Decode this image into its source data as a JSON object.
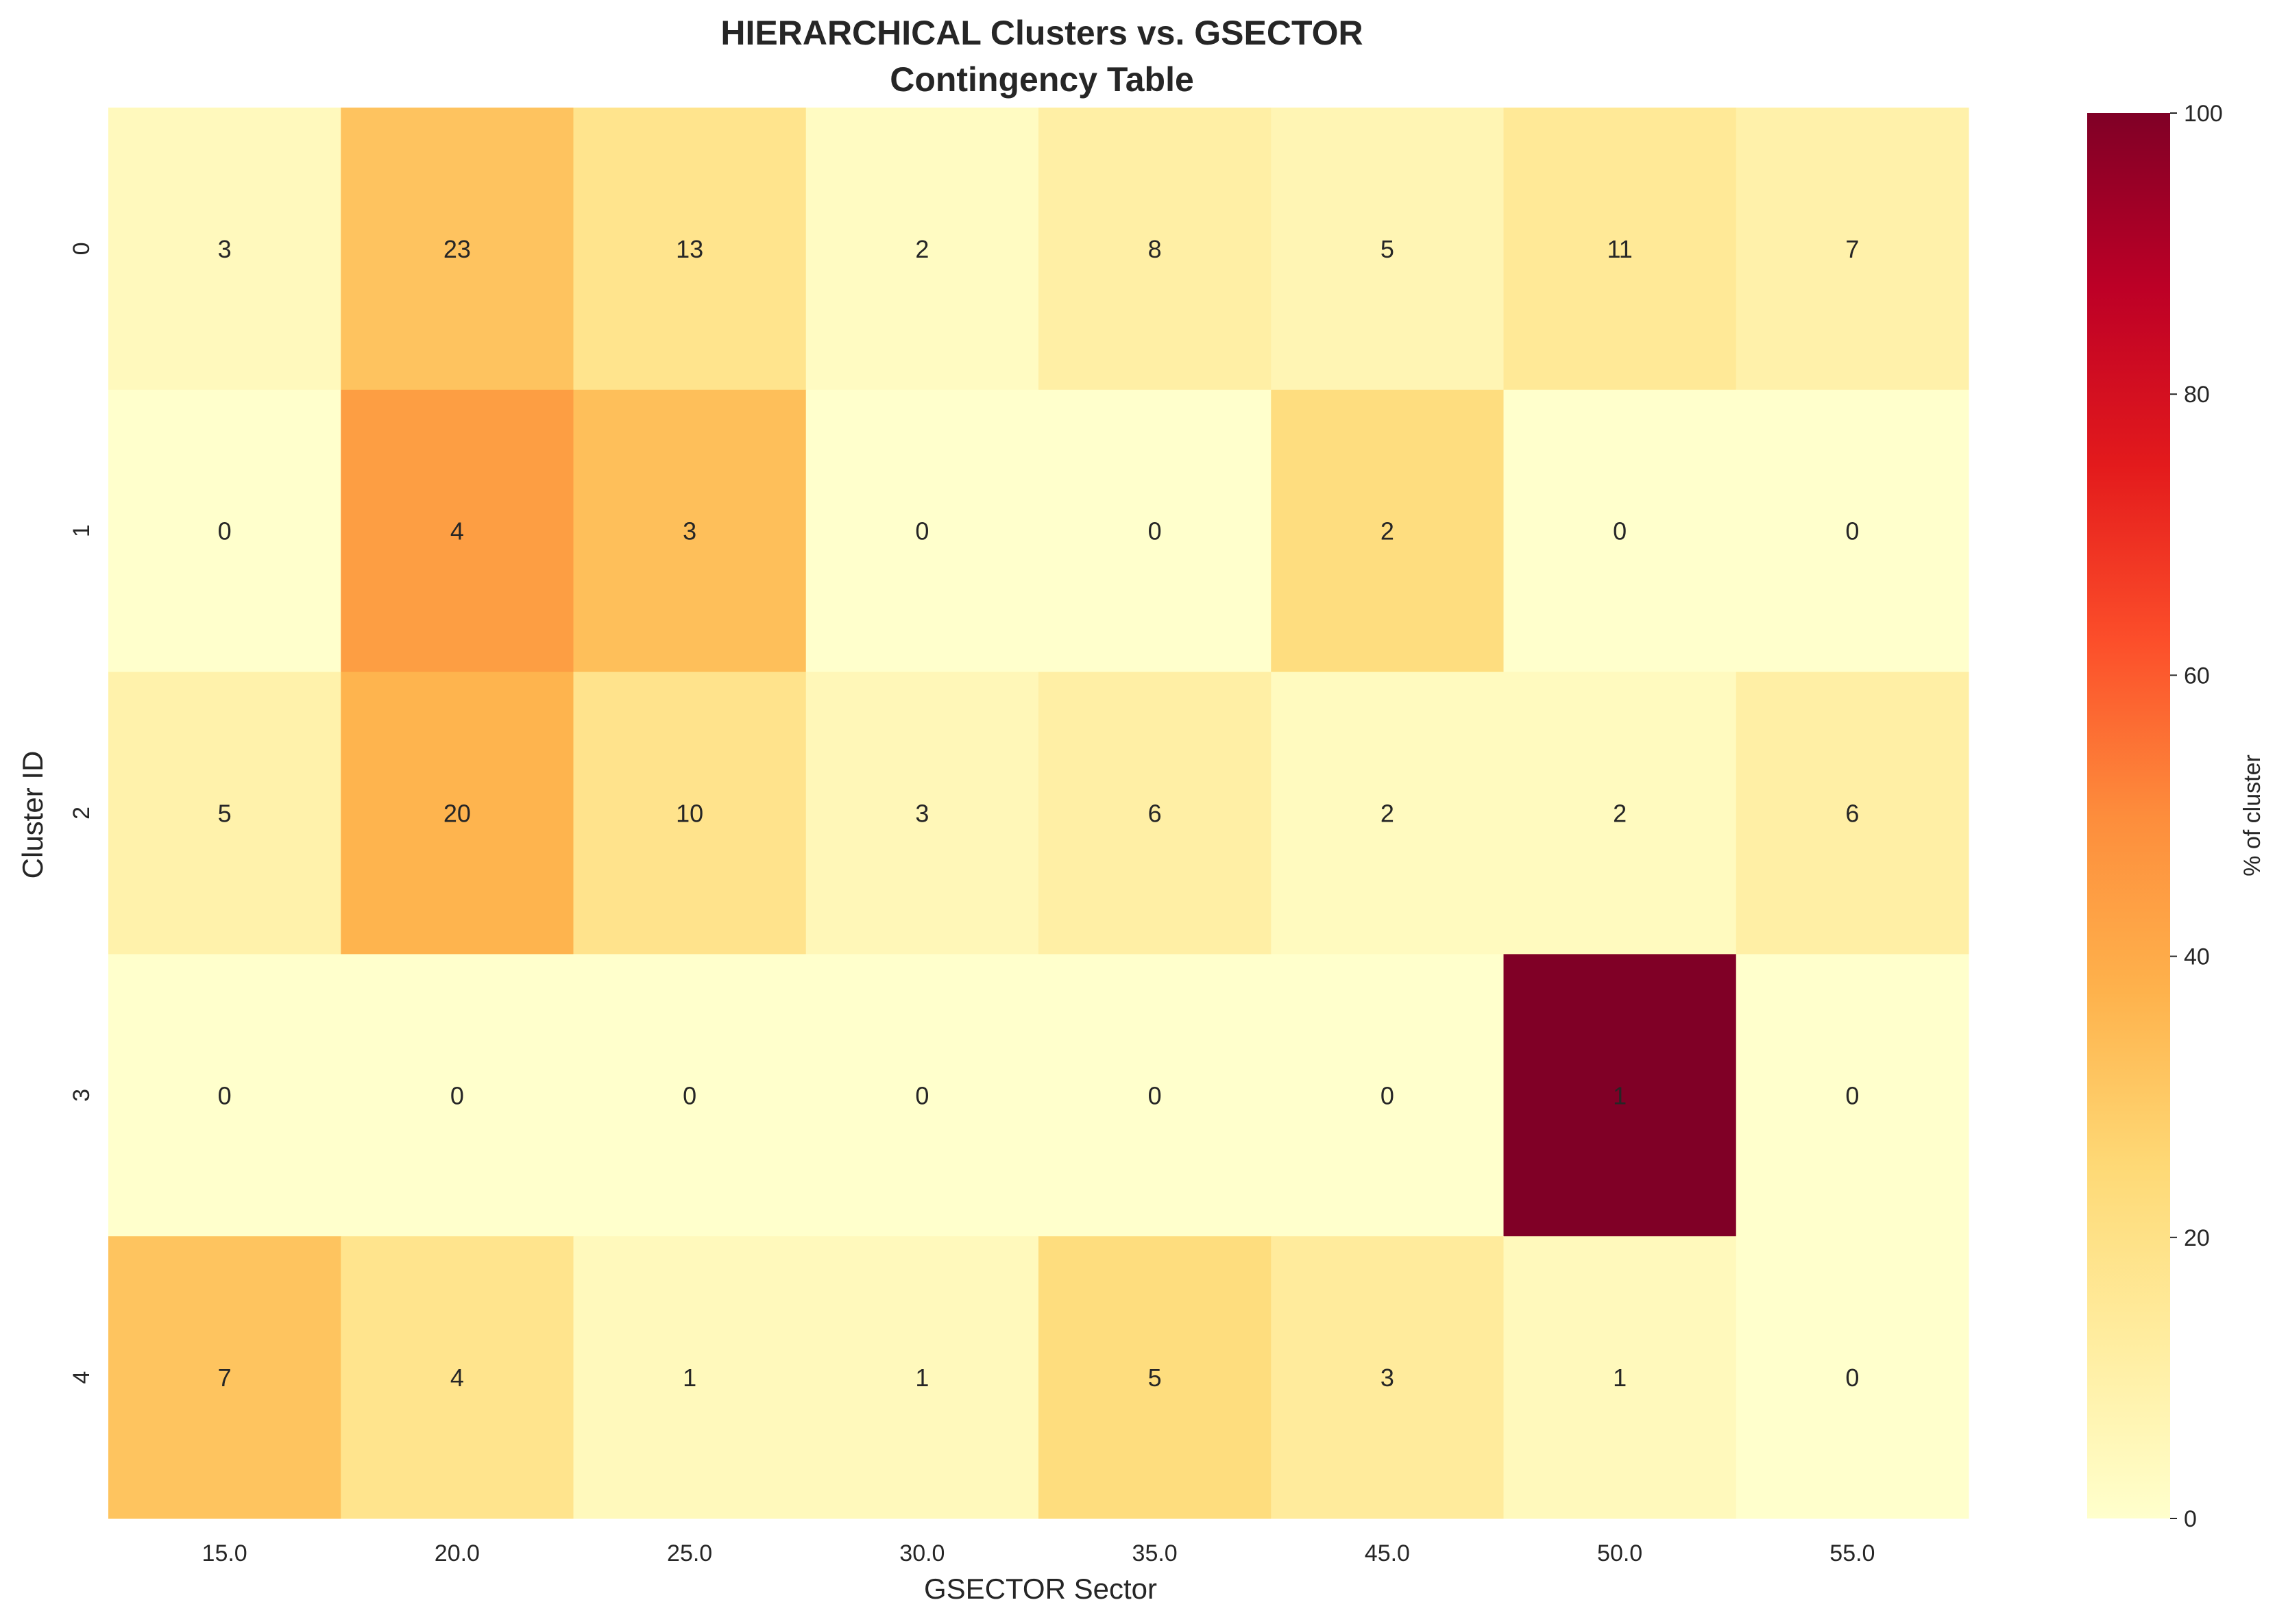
{
  "chart_data": {
    "type": "heatmap",
    "title_line1": "HIERARCHICAL Clusters vs. GSECTOR",
    "title_line2": "Contingency Table",
    "xlabel": "GSECTOR Sector",
    "ylabel": "Cluster ID",
    "x_categories": [
      "15.0",
      "20.0",
      "25.0",
      "30.0",
      "35.0",
      "45.0",
      "50.0",
      "55.0"
    ],
    "y_categories": [
      "0",
      "1",
      "2",
      "3",
      "4"
    ],
    "counts": [
      [
        3,
        23,
        13,
        2,
        8,
        5,
        11,
        7
      ],
      [
        0,
        4,
        3,
        0,
        0,
        2,
        0,
        0
      ],
      [
        5,
        20,
        10,
        3,
        6,
        2,
        2,
        6
      ],
      [
        0,
        0,
        0,
        0,
        0,
        0,
        1,
        0
      ],
      [
        7,
        4,
        1,
        1,
        5,
        3,
        1,
        0
      ]
    ],
    "percent_of_cluster": [
      [
        4.2,
        31.9,
        18.1,
        2.8,
        11.1,
        6.9,
        15.3,
        9.7
      ],
      [
        0,
        44.4,
        33.3,
        0,
        0,
        22.2,
        0,
        0
      ],
      [
        9.3,
        37.0,
        18.5,
        5.6,
        11.1,
        3.7,
        3.7,
        11.1
      ],
      [
        0,
        0,
        0,
        0,
        0,
        0,
        100,
        0
      ],
      [
        31.8,
        18.2,
        4.5,
        4.5,
        22.7,
        13.6,
        4.5,
        0
      ]
    ],
    "colorbar": {
      "label": "% of cluster",
      "range": [
        0,
        100
      ],
      "ticks": [
        "0",
        "20",
        "40",
        "60",
        "80",
        "100"
      ],
      "colormap": "YlOrRd",
      "stops": [
        "#ffffcc",
        "#ffeda0",
        "#fed976",
        "#feb24c",
        "#fd8d3c",
        "#fc4e2a",
        "#e31a1c",
        "#bd0026",
        "#800026"
      ]
    }
  }
}
